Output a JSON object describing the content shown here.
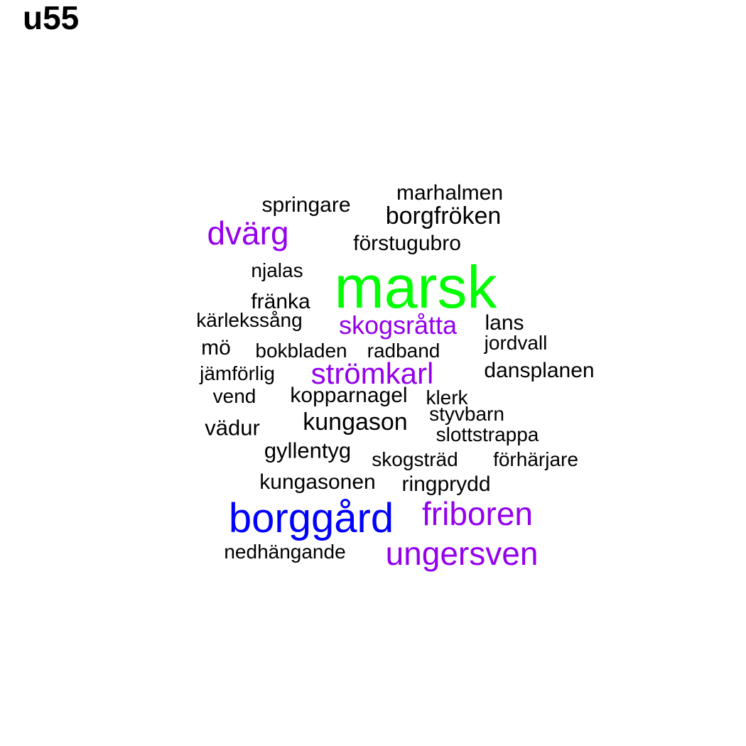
{
  "title": "u55",
  "colors": {
    "black": "#000000",
    "purple": "#9400ee",
    "green": "#00ff00",
    "blue": "#0000ff"
  },
  "words": [
    {
      "id": "marsk",
      "text": "marsk",
      "color": "#00ff00"
    },
    {
      "id": "borggard",
      "text": "borggård",
      "color": "#0000ff"
    },
    {
      "id": "ungersven",
      "text": "ungersven",
      "color": "#9400ee"
    },
    {
      "id": "friboren",
      "text": "friboren",
      "color": "#9400ee"
    },
    {
      "id": "dvarg",
      "text": "dvärg",
      "color": "#9400ee"
    },
    {
      "id": "stromkarl",
      "text": "strömkarl",
      "color": "#9400ee"
    },
    {
      "id": "skogsratta",
      "text": "skogsråtta",
      "color": "#9400ee"
    },
    {
      "id": "borgfroken",
      "text": "borgfröken",
      "color": "#000000"
    },
    {
      "id": "kungason",
      "text": "kungason",
      "color": "#000000"
    },
    {
      "id": "gyllentyg",
      "text": "gyllentyg",
      "color": "#000000"
    },
    {
      "id": "vadur",
      "text": "vädur",
      "color": "#000000"
    },
    {
      "id": "kungasonen",
      "text": "kungasonen",
      "color": "#000000"
    },
    {
      "id": "dansplanen",
      "text": "dansplanen",
      "color": "#000000"
    },
    {
      "id": "forstugubro",
      "text": "förstugubro",
      "color": "#000000"
    },
    {
      "id": "marhalmen",
      "text": "marhalmen",
      "color": "#000000"
    },
    {
      "id": "springare",
      "text": "springare",
      "color": "#000000"
    },
    {
      "id": "kopparnagel",
      "text": "kopparnagel",
      "color": "#000000"
    },
    {
      "id": "ringprydd",
      "text": "ringprydd",
      "color": "#000000"
    },
    {
      "id": "franka",
      "text": "fränka",
      "color": "#000000"
    },
    {
      "id": "mo",
      "text": "mö",
      "color": "#000000"
    },
    {
      "id": "lans",
      "text": "lans",
      "color": "#000000"
    },
    {
      "id": "jordvall",
      "text": "jordvall",
      "color": "#000000"
    },
    {
      "id": "skogstrad",
      "text": "skogsträd",
      "color": "#000000"
    },
    {
      "id": "forharjare",
      "text": "förhärjare",
      "color": "#000000"
    },
    {
      "id": "slottstrappa",
      "text": "slottstrappa",
      "color": "#000000"
    },
    {
      "id": "styvbarn",
      "text": "styvbarn",
      "color": "#000000"
    },
    {
      "id": "klerk",
      "text": "klerk",
      "color": "#000000"
    },
    {
      "id": "radband",
      "text": "radband",
      "color": "#000000"
    },
    {
      "id": "bokbladen",
      "text": "bokbladen",
      "color": "#000000"
    },
    {
      "id": "karlekssang",
      "text": "kärlekssång",
      "color": "#000000"
    },
    {
      "id": "njalas",
      "text": "njalas",
      "color": "#000000"
    },
    {
      "id": "jamforlig",
      "text": "jämförlig",
      "color": "#000000"
    },
    {
      "id": "vend",
      "text": "vend",
      "color": "#000000"
    },
    {
      "id": "nedhangande",
      "text": "nedhängande",
      "color": "#000000"
    }
  ]
}
